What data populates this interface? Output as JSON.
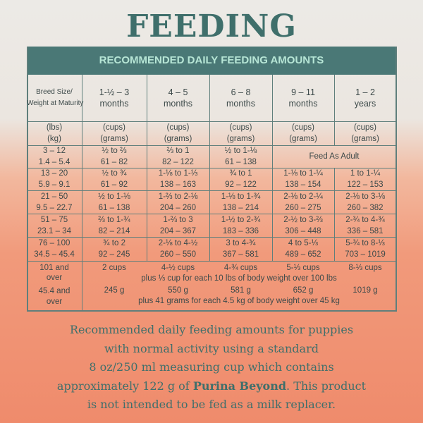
{
  "title": "FEEDING",
  "table": {
    "caption": "RECOMMENDED DAILY FEEDING AMOUNTS",
    "header": [
      [
        "Breed Size/",
        "Weight at Maturity"
      ],
      [
        "1-½ – 3",
        "months"
      ],
      [
        "4 – 5",
        "months"
      ],
      [
        "6 – 8",
        "months"
      ],
      [
        "9 – 11",
        "months"
      ],
      [
        "1 – 2",
        "years"
      ]
    ],
    "units": [
      [
        "(lbs)",
        "(kg)"
      ],
      [
        "(cups)",
        "(grams)"
      ],
      [
        "(cups)",
        "(grams)"
      ],
      [
        "(cups)",
        "(grams)"
      ],
      [
        "(cups)",
        "(grams)"
      ],
      [
        "(cups)",
        "(grams)"
      ]
    ],
    "rows": [
      [
        [
          "3 – 12",
          "1.4 – 5.4"
        ],
        [
          "½ to ⅔",
          "61 – 82"
        ],
        [
          "⅔ to 1",
          "82 – 122"
        ],
        [
          "½ to 1-⅛",
          "61 – 138"
        ],
        "Feed As Adult"
      ],
      [
        [
          "13 – 20",
          "5.9 – 9.1"
        ],
        [
          "½ to ¾",
          "61 – 92"
        ],
        [
          "1-⅛ to 1-⅓",
          "138 – 163"
        ],
        [
          "¾ to 1",
          "92 – 122"
        ],
        [
          "1-⅛ to 1-¼",
          "138 – 154"
        ],
        [
          "1 to 1-¼",
          "122 – 153"
        ]
      ],
      [
        [
          "21 – 50",
          "9.5 – 22.7"
        ],
        [
          "½ to 1-⅛",
          "61 – 138"
        ],
        [
          "1-⅔ to 2-⅛",
          "204 – 260"
        ],
        [
          "1-⅛ to 1-¾",
          "138 – 214"
        ],
        [
          "2-⅛ to 2-¼",
          "260 – 275"
        ],
        [
          "2-⅛ to 3-⅛",
          "260 – 382"
        ]
      ],
      [
        [
          "51 – 75",
          "23.1 – 34"
        ],
        [
          "⅔ to 1-¾",
          "82 – 214"
        ],
        [
          "1-⅔ to 3",
          "204 – 367"
        ],
        [
          "1-½ to 2-¾",
          "183 – 336"
        ],
        [
          "2-½ to 3-⅔",
          "306 – 448"
        ],
        [
          "2-¾ to 4-¾",
          "336 – 581"
        ]
      ],
      [
        [
          "76 – 100",
          "34.5 – 45.4"
        ],
        [
          "¾ to 2",
          "92 – 245"
        ],
        [
          "2-⅛ to 4-½",
          "260 – 550"
        ],
        [
          "3 to 4-¾",
          "367 – 581"
        ],
        [
          "4 to 5-⅓",
          "489 – 652"
        ],
        [
          "5-¾ to 8-⅓",
          "703 – 1019"
        ]
      ]
    ],
    "last_row": {
      "lbs_label": [
        "101 and",
        "over"
      ],
      "cups": [
        "2 cups",
        "4-½ cups",
        "4-¾ cups",
        "5-⅓ cups",
        "8-⅓ cups"
      ],
      "cups_note": "plus ⅓ cup for each 10 lbs of body weight over 100 lbs",
      "kg_label": [
        "45.4 and",
        "over"
      ],
      "grams": [
        "245 g",
        "550 g",
        "581 g",
        "652 g",
        "1019 g"
      ],
      "grams_note": "plus 41 grams for each 4.5 kg of body weight over 45 kg"
    }
  },
  "footer": {
    "lines": [
      [
        "Recommended daily feeding amounts for puppies"
      ],
      [
        "with normal activity using a standard"
      ],
      [
        "8 oz/250 ml measuring cup which contains"
      ],
      [
        "approximately 122 g of ",
        "Purina Beyond",
        ". This product"
      ],
      [
        "is not intended to be fed as a milk replacer."
      ]
    ]
  }
}
